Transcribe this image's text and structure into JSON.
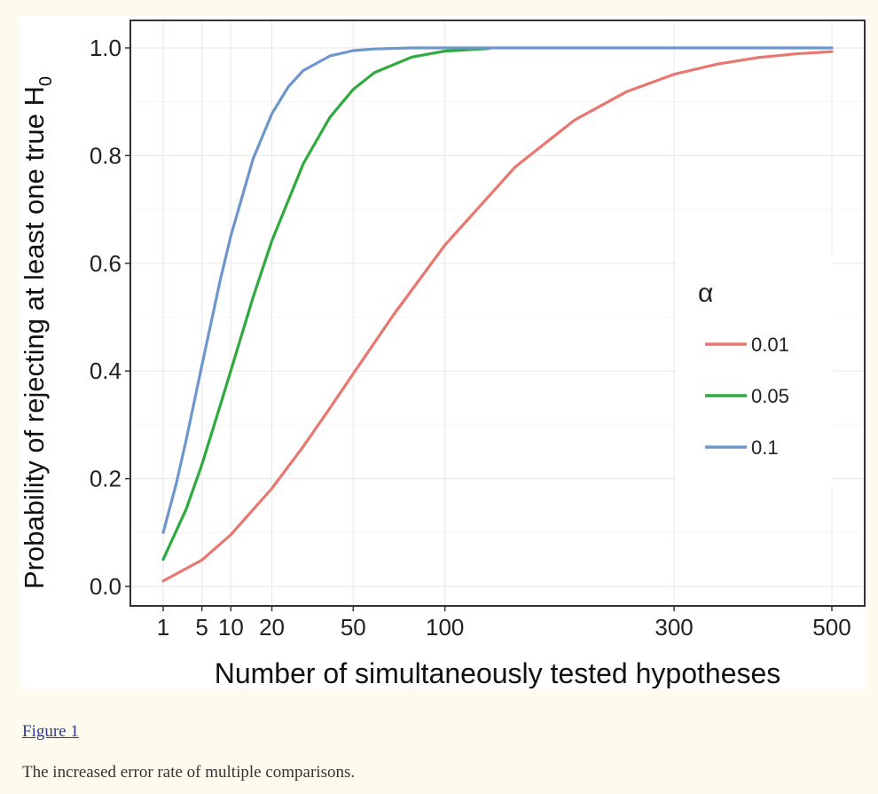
{
  "chart_data": {
    "type": "line",
    "title": "",
    "xlabel": "Number of simultaneously tested hypotheses",
    "ylabel": "Probability of rejecting at least one true H",
    "ylabel_subscript": "0",
    "xscale": "sqrt",
    "xlim": [
      1,
      500
    ],
    "ylim": [
      0,
      1
    ],
    "x_ticks": [
      1,
      5,
      10,
      20,
      50,
      100,
      300,
      500
    ],
    "x_tick_labels": [
      "1",
      "5",
      "10",
      "20",
      "50",
      "100",
      "300",
      "500"
    ],
    "y_ticks": [
      0,
      0.2,
      0.4,
      0.6,
      0.8,
      1
    ],
    "y_tick_labels": [
      "0.0",
      "0.2",
      "0.4",
      "0.6",
      "0.8",
      "1.0"
    ],
    "grid": true,
    "legend": {
      "title": "α",
      "placement": "right"
    },
    "series": [
      {
        "name": "0.01",
        "color": "#e8776f",
        "x": [
          1,
          5,
          10,
          20,
          30,
          40,
          50,
          70,
          100,
          150,
          200,
          250,
          300,
          350,
          400,
          450,
          500
        ],
        "values": [
          0.01,
          0.049,
          0.096,
          0.182,
          0.26,
          0.331,
          0.395,
          0.505,
          0.634,
          0.779,
          0.866,
          0.919,
          0.951,
          0.97,
          0.982,
          0.989,
          0.993
        ]
      },
      {
        "name": "0.05",
        "color": "#2eaa3e",
        "x": [
          1,
          3,
          5,
          8,
          10,
          15,
          20,
          30,
          40,
          50,
          60,
          80,
          100,
          130
        ],
        "values": [
          0.05,
          0.143,
          0.226,
          0.337,
          0.401,
          0.537,
          0.642,
          0.785,
          0.871,
          0.923,
          0.954,
          0.983,
          0.994,
          0.999
        ]
      },
      {
        "name": "0.1",
        "color": "#6d97cc",
        "x": [
          1,
          2,
          3,
          5,
          8,
          10,
          15,
          20,
          25,
          30,
          40,
          50,
          60,
          80,
          100,
          500
        ],
        "values": [
          0.1,
          0.19,
          0.271,
          0.41,
          0.57,
          0.651,
          0.794,
          0.878,
          0.928,
          0.958,
          0.985,
          0.995,
          0.998,
          1.0,
          1.0,
          1.0
        ]
      }
    ]
  },
  "figure": {
    "link_text": "Figure 1",
    "caption": "The increased error rate of multiple comparisons."
  }
}
